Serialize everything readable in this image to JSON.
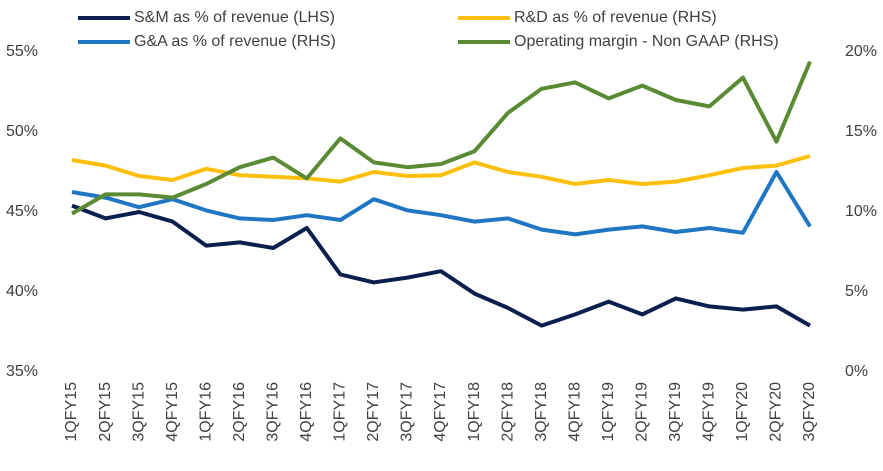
{
  "chart_data": {
    "type": "line",
    "categories": [
      "1QFY15",
      "2QFY15",
      "3QFY15",
      "4QFY15",
      "1QFY16",
      "2QFY16",
      "3QFY16",
      "4QFY16",
      "1QFY17",
      "2QFY17",
      "3QFY17",
      "4QFY17",
      "1QFY18",
      "2QFY18",
      "3QFY18",
      "4QFY18",
      "1QFY19",
      "2QFY19",
      "3QFY19",
      "4QFY19",
      "1QFY20",
      "2QFY20",
      "3QFY20"
    ],
    "series": [
      {
        "name": "S&M as % of revenue (LHS)",
        "color": "#0b1f4f",
        "axis": "y",
        "values": [
          45.4,
          44.6,
          45.0,
          44.4,
          42.9,
          43.1,
          42.75,
          44.0,
          41.1,
          40.6,
          40.9,
          41.3,
          39.9,
          39.0,
          37.9,
          38.6,
          39.4,
          38.6,
          39.6,
          39.1,
          38.9,
          39.1,
          37.9
        ]
      },
      {
        "name": "R&D as % of revenue (RHS)",
        "color": "#fcc00c",
        "axis": "y2",
        "values": [
          13.25,
          12.9,
          12.25,
          12.0,
          12.7,
          12.3,
          12.2,
          12.1,
          11.9,
          12.5,
          12.25,
          12.3,
          13.1,
          12.5,
          12.2,
          11.75,
          12.0,
          11.75,
          11.9,
          12.3,
          12.75,
          12.9,
          13.5
        ]
      },
      {
        "name": "G&A as % of revenue (RHS)",
        "color": "#1f77c4",
        "axis": "y2",
        "values": [
          11.25,
          10.9,
          10.3,
          10.8,
          10.1,
          9.6,
          9.5,
          9.8,
          9.5,
          10.8,
          10.1,
          9.8,
          9.4,
          9.6,
          8.9,
          8.6,
          8.9,
          9.1,
          8.75,
          9.0,
          8.7,
          12.5,
          9.1
        ]
      },
      {
        "name": "Operating margin - Non GAAP (RHS)",
        "color": "#5a8a33",
        "axis": "y2",
        "values": [
          9.9,
          11.1,
          11.1,
          10.9,
          11.75,
          12.8,
          13.4,
          12.1,
          14.6,
          13.1,
          12.8,
          13.0,
          13.8,
          16.2,
          17.7,
          18.1,
          17.1,
          17.9,
          17.0,
          16.6,
          18.4,
          14.4,
          19.4
        ]
      }
    ],
    "ylim": [
      35,
      55
    ],
    "yticks": [
      {
        "value": 35,
        "label": "35%"
      },
      {
        "value": 40,
        "label": "40%"
      },
      {
        "value": 45,
        "label": "45%"
      },
      {
        "value": 50,
        "label": "50%"
      },
      {
        "value": 55,
        "label": "55%"
      }
    ],
    "y2lim": [
      0,
      20
    ],
    "y2ticks": [
      {
        "value": 0,
        "label": "0%"
      },
      {
        "value": 5,
        "label": "5%"
      },
      {
        "value": 10,
        "label": "10%"
      },
      {
        "value": 15,
        "label": "15%"
      },
      {
        "value": 20,
        "label": "20%"
      }
    ],
    "grid": false
  }
}
